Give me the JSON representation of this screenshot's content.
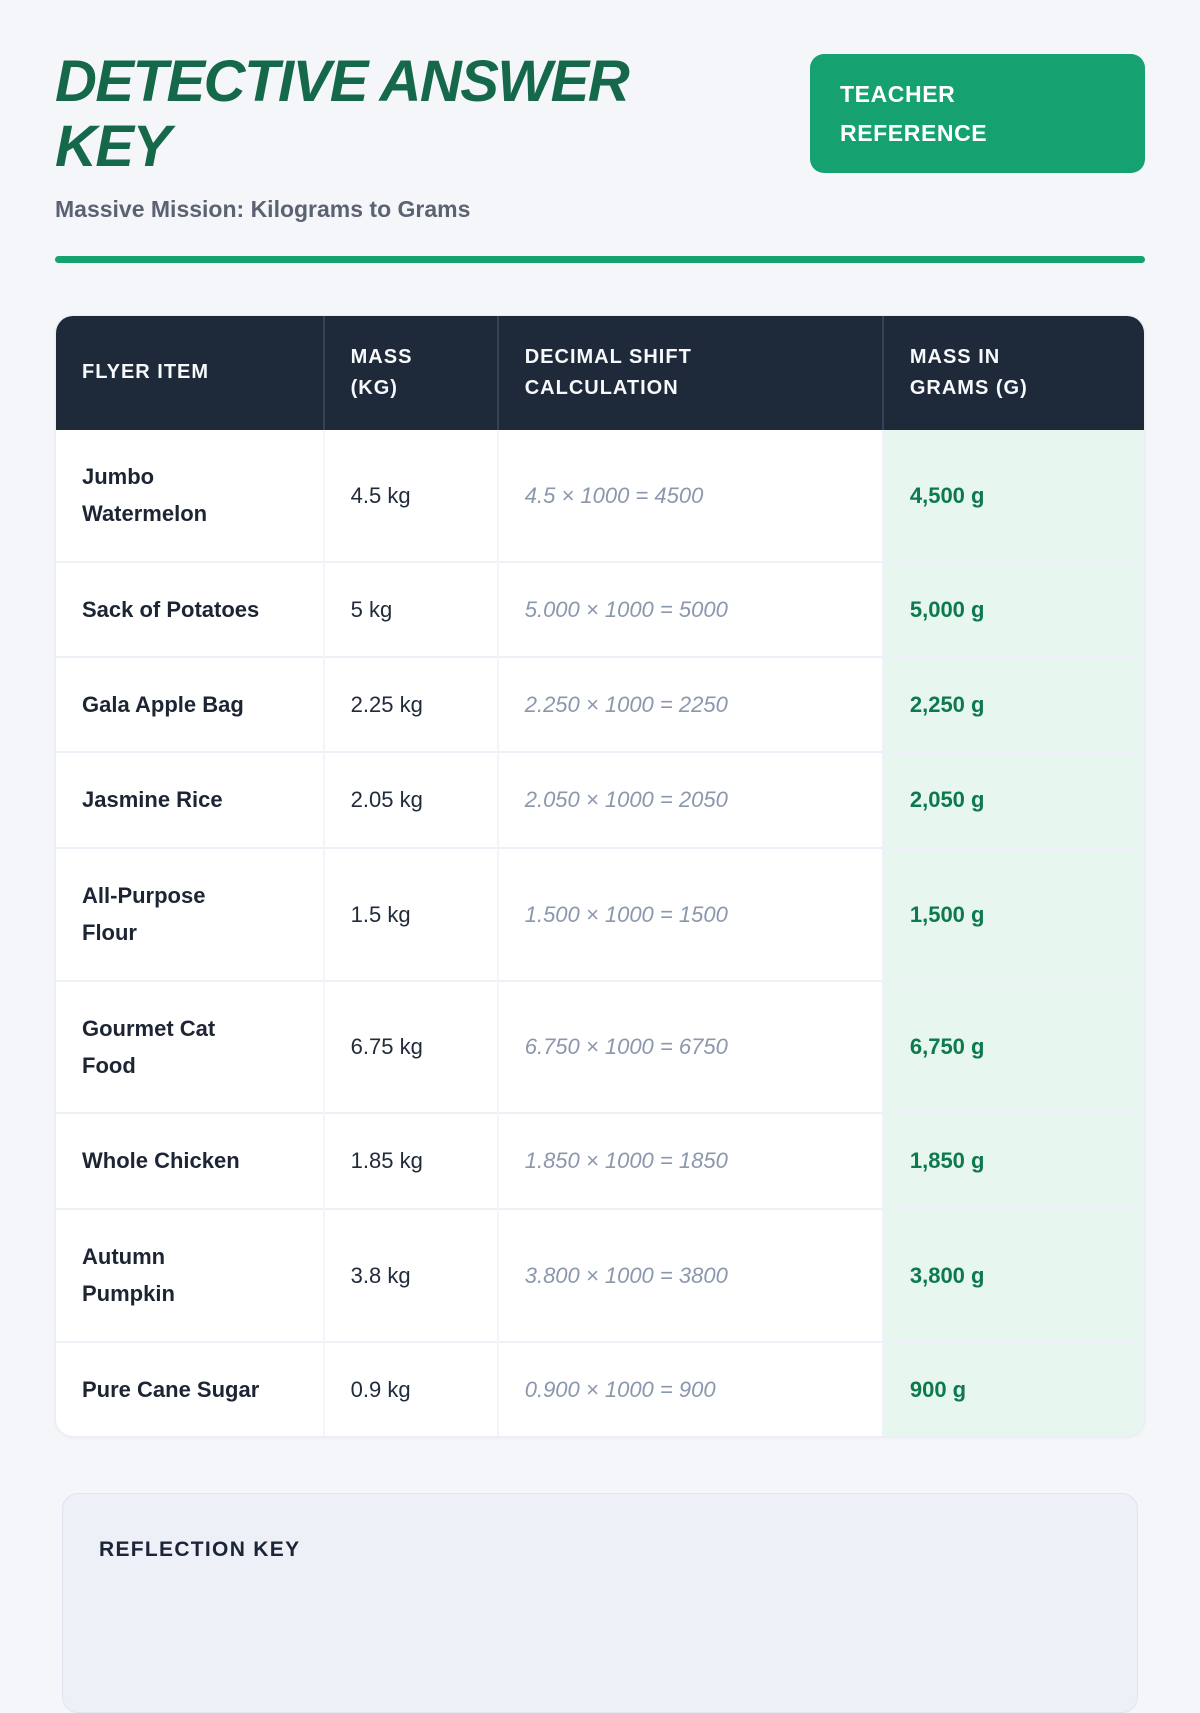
{
  "header": {
    "title": "DETECTIVE ANSWER KEY",
    "badge": "TEACHER REFERENCE",
    "subtitle": "Massive Mission: Kilograms to Grams"
  },
  "table": {
    "columns": [
      "FLYER ITEM",
      "MASS (KG)",
      "DECIMAL SHIFT CALCULATION",
      "MASS IN GRAMS (G)"
    ],
    "rows": [
      {
        "item": "Jumbo Watermelon",
        "mass_kg": "4.5 kg",
        "calculation": "4.5 × 1000 = 4500",
        "mass_g": "4,500 g"
      },
      {
        "item": "Sack of Potatoes",
        "mass_kg": "5 kg",
        "calculation": "5.000 × 1000 = 5000",
        "mass_g": "5,000 g"
      },
      {
        "item": "Gala Apple Bag",
        "mass_kg": "2.25 kg",
        "calculation": "2.250 × 1000 = 2250",
        "mass_g": "2,250 g"
      },
      {
        "item": "Jasmine Rice",
        "mass_kg": "2.05 kg",
        "calculation": "2.050 × 1000 = 2050",
        "mass_g": "2,050 g"
      },
      {
        "item": "All-Purpose Flour",
        "mass_kg": "1.5 kg",
        "calculation": "1.500 × 1000 = 1500",
        "mass_g": "1,500 g"
      },
      {
        "item": "Gourmet Cat Food",
        "mass_kg": "6.75 kg",
        "calculation": "6.750 × 1000 = 6750",
        "mass_g": "6,750 g"
      },
      {
        "item": "Whole Chicken",
        "mass_kg": "1.85 kg",
        "calculation": "1.850 × 1000 = 1850",
        "mass_g": "1,850 g"
      },
      {
        "item": "Autumn Pumpkin",
        "mass_kg": "3.8 kg",
        "calculation": "3.800 × 1000 = 3800",
        "mass_g": "3,800 g"
      },
      {
        "item": "Pure Cane Sugar",
        "mass_kg": "0.9 kg",
        "calculation": "0.900 × 1000 = 900",
        "mass_g": "900 g"
      }
    ]
  },
  "reflection": {
    "heading": "REFLECTION KEY"
  },
  "colors": {
    "title_green": "#15684a",
    "accent_green": "#16a170",
    "result_green": "#0d7a4e",
    "result_bg_mint": "#e7f6ee",
    "header_navy": "#1e2939",
    "subtitle_gray": "#5b6373",
    "calc_gray_blue": "#8b97ac",
    "page_bg": "#f5f6fa",
    "reflection_bg": "#edf0f7"
  }
}
